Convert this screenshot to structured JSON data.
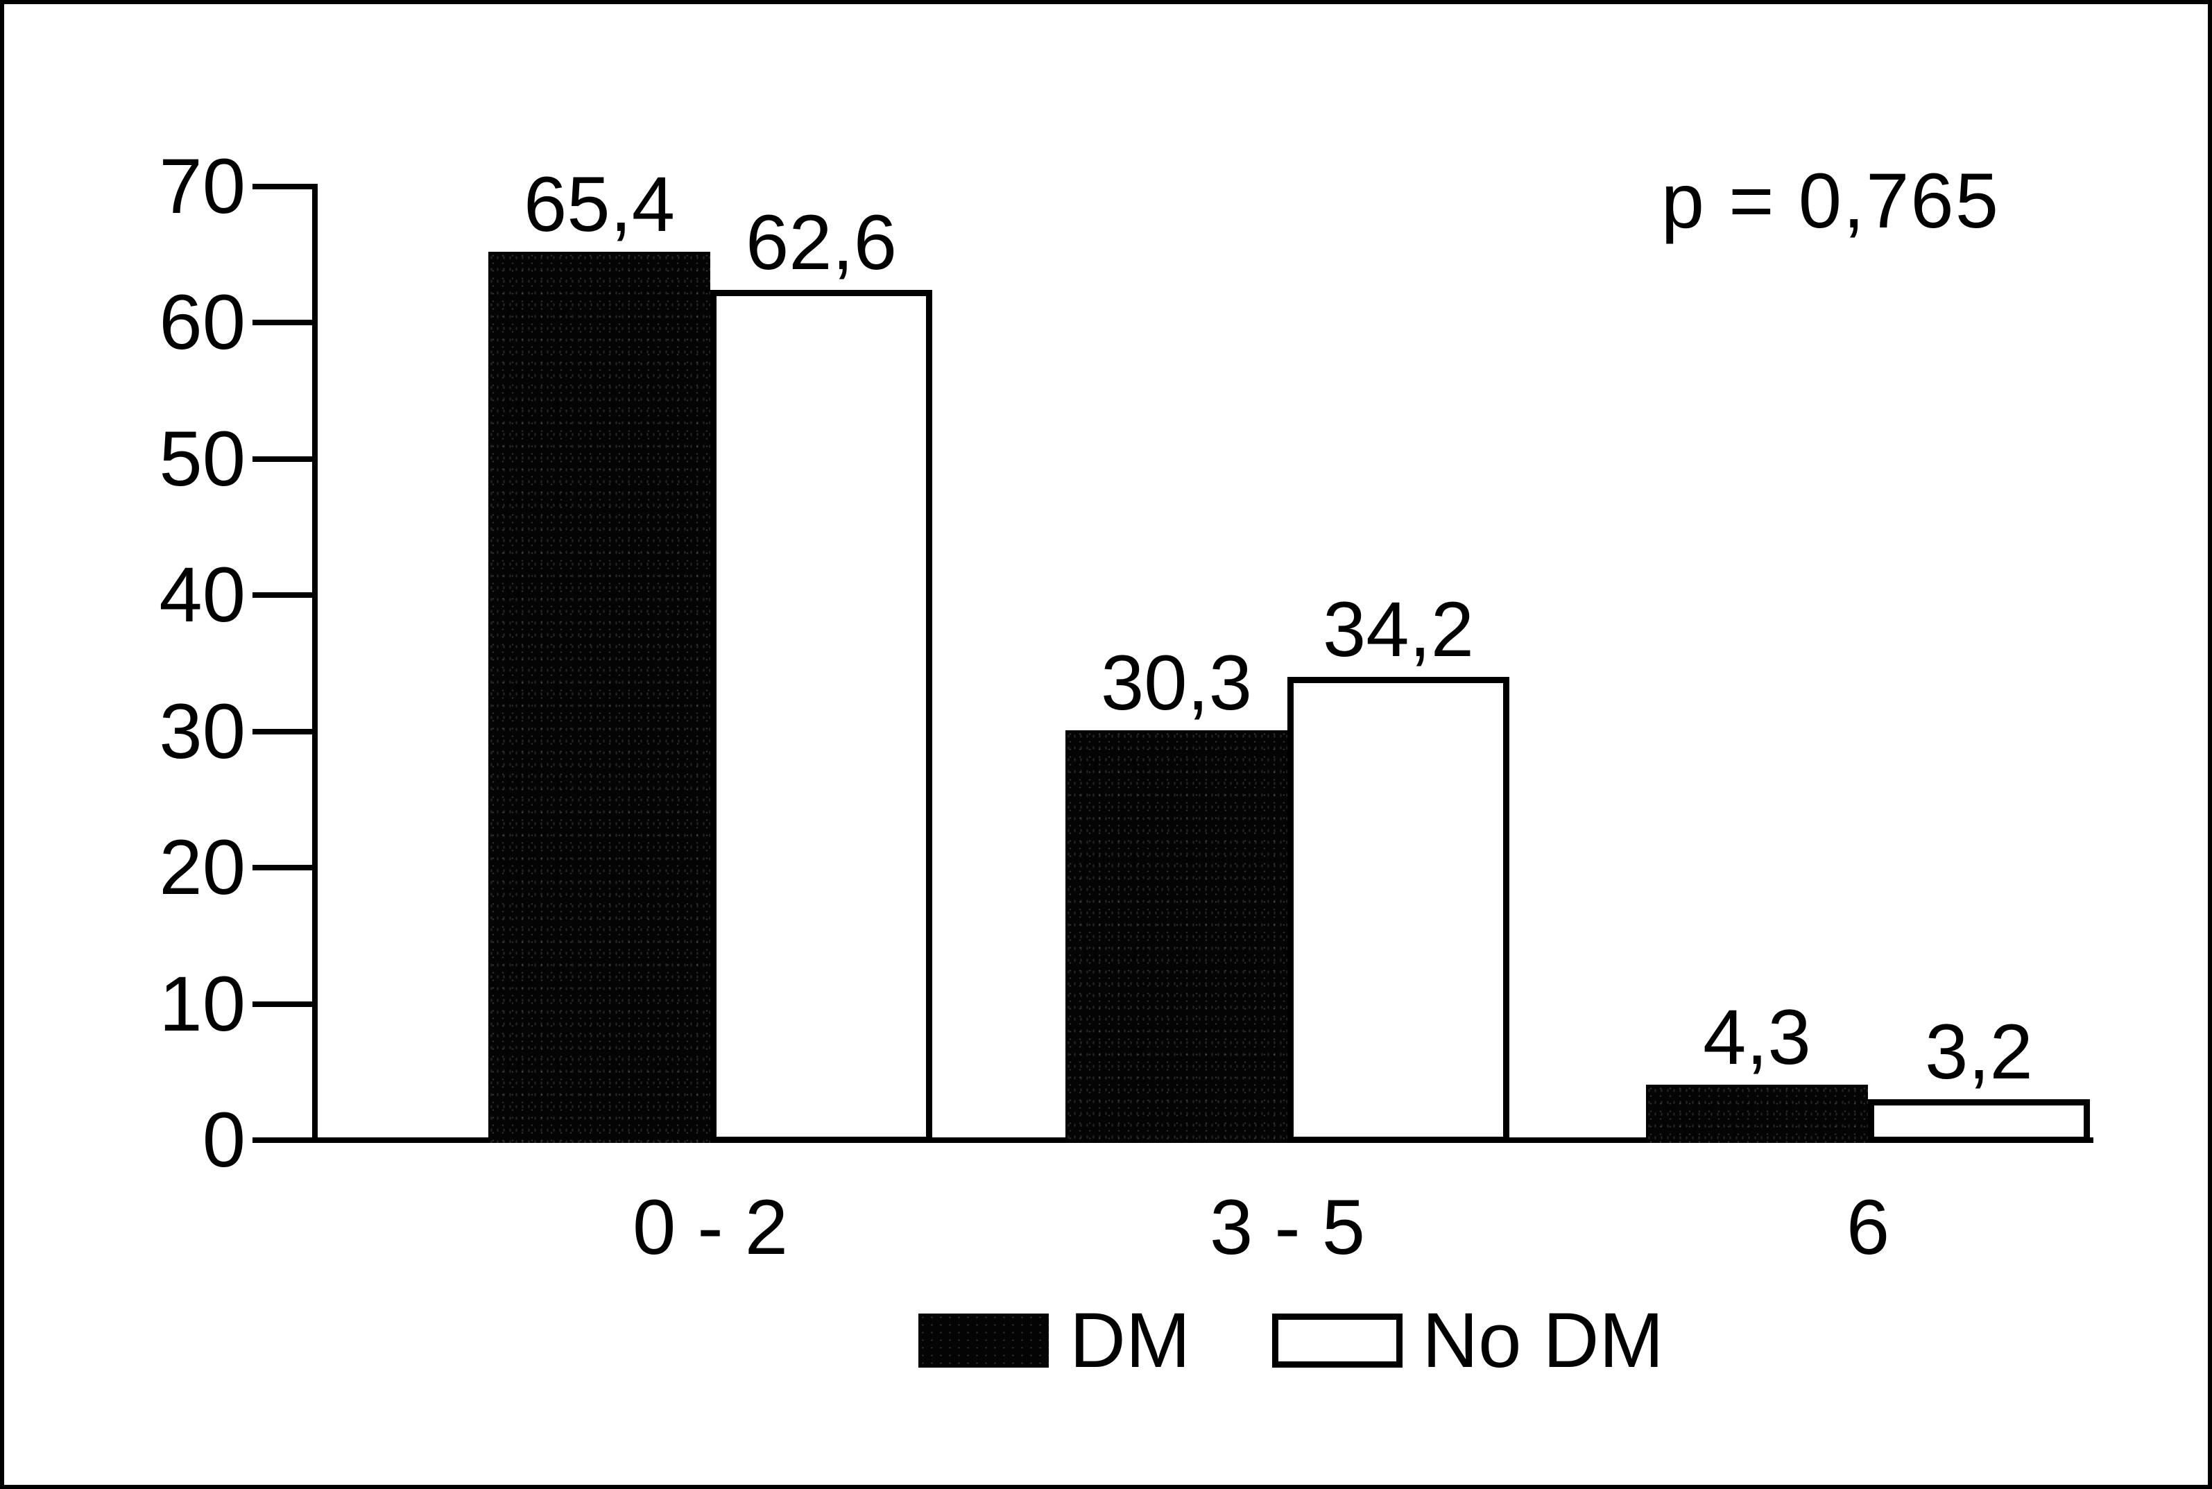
{
  "figure": {
    "background": "#ffffff",
    "frame_border_color": "#000000"
  },
  "chart_data": {
    "type": "bar",
    "title": "",
    "categories": [
      "0 - 2",
      "3 - 5",
      "6"
    ],
    "series": [
      {
        "name": "DM",
        "swatch": "black",
        "color": "#000000",
        "values": [
          65.4,
          30.3,
          4.3
        ],
        "value_labels": [
          "65,4",
          "30,3",
          "4,3"
        ]
      },
      {
        "name": "No DM",
        "swatch": "white-outlined",
        "color": "#ffffff",
        "values": [
          62.6,
          34.2,
          3.2
        ],
        "value_labels": [
          "62,6",
          "34,2",
          "3,2"
        ]
      }
    ],
    "y_axis": {
      "min": 0,
      "max": 70,
      "tick_interval": 10,
      "tick_labels": [
        "0",
        "10",
        "20",
        "30",
        "40",
        "50",
        "60",
        "70"
      ]
    },
    "x_axis": {
      "label": ""
    },
    "legend": {
      "position": "bottom",
      "items": [
        {
          "label": "DM",
          "swatch": "black"
        },
        {
          "label": "No DM",
          "swatch": "white"
        }
      ]
    },
    "annotation": "p = 0,765",
    "grid": false,
    "axis_color": "#000000",
    "value_label_decimal_separator": ","
  }
}
